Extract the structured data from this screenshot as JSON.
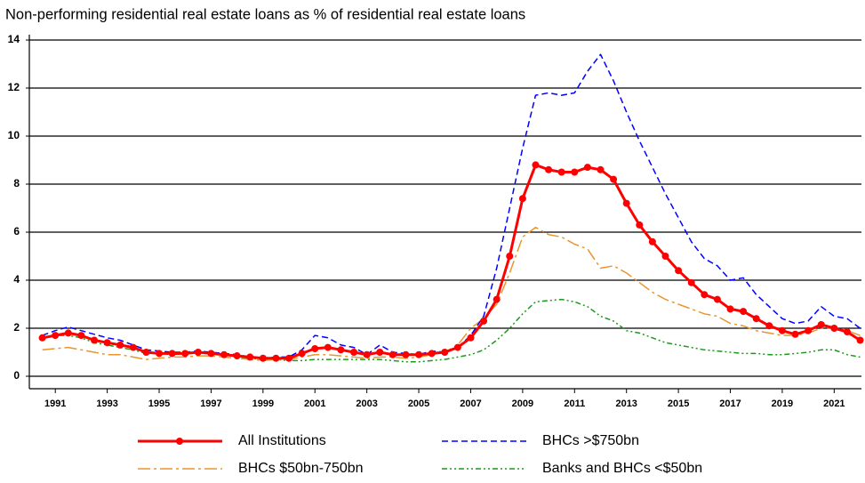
{
  "chart_data": {
    "type": "line",
    "title": "Non-performing residential real estate loans as % of residential real estate loans",
    "x": [
      1990.5,
      1991,
      1991.5,
      1992,
      1992.5,
      1993,
      1993.5,
      1994,
      1994.5,
      1995,
      1995.5,
      1996,
      1996.5,
      1997,
      1997.5,
      1998,
      1998.5,
      1999,
      1999.5,
      2000,
      2000.5,
      2001,
      2001.5,
      2002,
      2002.5,
      2003,
      2003.5,
      2004,
      2004.5,
      2005,
      2005.5,
      2006,
      2006.5,
      2007,
      2007.5,
      2008,
      2008.5,
      2009,
      2009.5,
      2010,
      2010.5,
      2011,
      2011.5,
      2012,
      2012.5,
      2013,
      2013.5,
      2014,
      2014.5,
      2015,
      2015.5,
      2016,
      2016.5,
      2017,
      2017.5,
      2018,
      2018.5,
      2019,
      2019.5,
      2020,
      2020.5,
      2021,
      2021.5,
      2022
    ],
    "series": [
      {
        "name": "All Institutions",
        "color": "#ff0000",
        "width": 3,
        "marker": "circle",
        "dash": "none",
        "values": [
          1.6,
          1.7,
          1.8,
          1.7,
          1.5,
          1.4,
          1.3,
          1.2,
          1.0,
          0.95,
          0.95,
          0.95,
          1.0,
          0.95,
          0.9,
          0.85,
          0.8,
          0.75,
          0.75,
          0.75,
          0.95,
          1.15,
          1.2,
          1.1,
          1.0,
          0.9,
          1.0,
          0.9,
          0.9,
          0.9,
          0.95,
          1.0,
          1.2,
          1.6,
          2.3,
          3.2,
          5.0,
          7.4,
          8.8,
          8.6,
          8.5,
          8.5,
          8.7,
          8.6,
          8.2,
          7.2,
          6.3,
          5.6,
          5.0,
          4.4,
          3.9,
          3.4,
          3.2,
          2.8,
          2.7,
          2.4,
          2.1,
          1.9,
          1.75,
          1.9,
          2.15,
          2.0,
          1.85,
          1.5
        ]
      },
      {
        "name": "BHCs >$750bn",
        "color": "#0000ff",
        "width": 1.5,
        "dash": "7 4",
        "values": [
          1.7,
          1.9,
          2.05,
          1.9,
          1.75,
          1.6,
          1.5,
          1.3,
          1.1,
          1.05,
          1.0,
          1.0,
          1.05,
          1.0,
          0.95,
          0.9,
          0.8,
          0.75,
          0.8,
          0.8,
          1.1,
          1.7,
          1.6,
          1.3,
          1.2,
          0.9,
          1.3,
          1.0,
          0.95,
          0.9,
          1.05,
          1.0,
          1.2,
          1.7,
          2.5,
          4.5,
          7.0,
          9.5,
          11.7,
          11.8,
          11.7,
          11.8,
          12.7,
          13.4,
          12.3,
          11.0,
          9.8,
          8.7,
          7.6,
          6.6,
          5.6,
          4.9,
          4.6,
          4.0,
          4.1,
          3.4,
          2.9,
          2.4,
          2.2,
          2.3,
          2.9,
          2.5,
          2.4,
          2.0
        ]
      },
      {
        "name": "BHCs $50bn-750bn",
        "color": "#e8962e",
        "width": 1.5,
        "dash": "14 4 3 4",
        "values": [
          1.1,
          1.15,
          1.2,
          1.1,
          1.0,
          0.9,
          0.9,
          0.8,
          0.7,
          0.75,
          0.8,
          0.8,
          0.85,
          0.85,
          0.8,
          0.75,
          0.7,
          0.65,
          0.7,
          0.7,
          0.8,
          0.9,
          0.9,
          0.85,
          0.8,
          0.75,
          0.8,
          0.8,
          0.75,
          0.8,
          0.9,
          1.0,
          1.3,
          2.0,
          2.4,
          3.0,
          4.3,
          5.8,
          6.2,
          5.9,
          5.8,
          5.5,
          5.3,
          4.5,
          4.6,
          4.3,
          3.9,
          3.5,
          3.2,
          3.0,
          2.8,
          2.6,
          2.5,
          2.2,
          2.1,
          1.9,
          1.8,
          1.7,
          1.7,
          1.8,
          2.0,
          2.0,
          1.9,
          1.7
        ]
      },
      {
        "name": "Banks and BHCs <$50bn",
        "color": "#1a9a1a",
        "width": 1.5,
        "dash": "6 3 2 3 2 3",
        "values": [
          1.6,
          1.7,
          1.7,
          1.6,
          1.4,
          1.3,
          1.2,
          1.1,
          0.95,
          0.95,
          0.9,
          0.95,
          1.0,
          0.9,
          0.9,
          0.8,
          0.75,
          0.7,
          0.7,
          0.65,
          0.65,
          0.7,
          0.7,
          0.7,
          0.7,
          0.7,
          0.7,
          0.65,
          0.6,
          0.6,
          0.65,
          0.7,
          0.8,
          0.9,
          1.1,
          1.5,
          2.0,
          2.6,
          3.1,
          3.15,
          3.2,
          3.1,
          2.9,
          2.5,
          2.3,
          1.9,
          1.8,
          1.6,
          1.4,
          1.3,
          1.2,
          1.1,
          1.05,
          1.0,
          0.95,
          0.95,
          0.9,
          0.9,
          0.95,
          1.0,
          1.1,
          1.1,
          0.9,
          0.8
        ]
      }
    ],
    "xlim": [
      1990,
      2022.05
    ],
    "ylim": [
      0,
      14
    ],
    "xticks": [
      1991,
      1993,
      1995,
      1997,
      1999,
      2001,
      2003,
      2005,
      2007,
      2009,
      2011,
      2013,
      2015,
      2017,
      2019,
      2021
    ],
    "yticks": [
      0,
      2,
      4,
      6,
      8,
      10,
      12,
      14
    ],
    "grid": true
  }
}
